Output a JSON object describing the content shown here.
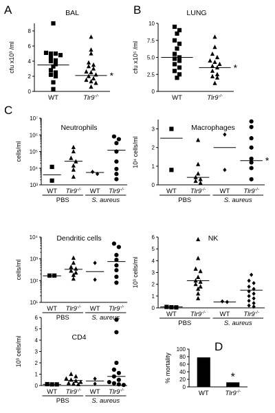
{
  "panel_labels": {
    "A": "A",
    "B": "B",
    "C": "C",
    "D": "D"
  },
  "chart_data": [
    {
      "id": "bal",
      "type": "scatter",
      "title": "BAL",
      "ylabel": "cfu x10³ /ml",
      "ylim": [
        0,
        9
      ],
      "yticks": [
        0,
        2,
        4,
        6,
        8
      ],
      "groups": [
        "WT",
        "Tlr9-/-"
      ],
      "group_labels": [],
      "series": [
        {
          "marker": "square",
          "values": [
            9,
            5.1,
            5,
            5,
            4.8,
            4.5,
            4.1,
            4,
            3.6,
            3.3,
            2.8,
            2.5,
            2.2,
            2,
            1.2,
            0.3
          ],
          "median": 3.5
        },
        {
          "marker": "triangle",
          "values": [
            7.2,
            5.5,
            5,
            3.8,
            3.5,
            3.3,
            3,
            2.6,
            2.5,
            2.2,
            2,
            1.7,
            1.5,
            1.3,
            1.1,
            0.6
          ],
          "median": 2.1
        }
      ],
      "annotations": [
        {
          "text": "*",
          "series": 1
        }
      ]
    },
    {
      "id": "lung",
      "type": "scatter",
      "title": "LUNG",
      "ylabel": "cfu x10⁵ /ml",
      "ylim": [
        0,
        10
      ],
      "yticks": [
        0,
        2.5,
        5,
        7.5,
        10
      ],
      "tick_labels": [
        "0",
        "2.5",
        "5.0",
        "7.5",
        "10"
      ],
      "groups": [
        "WT",
        "Tlr9-/-"
      ],
      "group_labels": [],
      "series": [
        {
          "marker": "square",
          "values": [
            9.5,
            9,
            8.5,
            7.5,
            7,
            6.3,
            5.5,
            5,
            4.8,
            4.5,
            4,
            3.5,
            3,
            2.5,
            2
          ],
          "median": 5
        },
        {
          "marker": "triangle",
          "values": [
            8,
            6.5,
            5.5,
            5,
            4.5,
            4.3,
            4,
            3.7,
            3.5,
            3,
            2.5,
            2.2,
            2,
            1.2
          ],
          "median": 3.5
        }
      ],
      "annotations": [
        {
          "text": "*",
          "series": 1
        }
      ]
    },
    {
      "id": "neutrophils",
      "type": "scatter",
      "title": "Neutrophils",
      "ylabel": "cells/ml",
      "yscale": "log",
      "ylim": [
        1000,
        10000000
      ],
      "yticks": [
        1000,
        10000,
        100000,
        1000000,
        10000000
      ],
      "tick_labels": [
        "10³",
        "10⁴",
        "10⁵",
        "10⁶",
        "10⁷"
      ],
      "groups": [
        "WT",
        "Tlr9-/-",
        "WT",
        "Tlr9-/-"
      ],
      "group_labels": [
        "PBS",
        "S. aureus"
      ],
      "series": [
        {
          "marker": "square",
          "values": [
            12000,
            1800
          ],
          "median": 4000
        },
        {
          "marker": "triangle",
          "values": [
            180000,
            100000,
            40000,
            25000,
            14000,
            8000,
            3000
          ],
          "median": 26000
        },
        {
          "marker": "diamond",
          "values": [
            6000,
            4500
          ],
          "median": 5500
        },
        {
          "marker": "circle",
          "values": [
            800000,
            550000,
            320000,
            100000,
            25000,
            9000,
            4500,
            2200
          ],
          "median": 120000
        }
      ],
      "annotations": []
    },
    {
      "id": "macrophages",
      "type": "scatter",
      "title": "Macrophages",
      "ylabel": "10⁴ cells/ml",
      "ylim": [
        0,
        3.5
      ],
      "yticks": [
        0,
        1,
        2,
        3
      ],
      "groups": [
        "WT",
        "Tlr9-/-",
        "WT",
        "Tlr9-/-"
      ],
      "group_labels": [
        "PBS",
        "S. aureus"
      ],
      "series": [
        {
          "marker": "square",
          "values": [
            3,
            0.8
          ],
          "median": 2.5
        },
        {
          "marker": "triangle",
          "values": [
            2.4,
            1.1,
            0.6,
            0.4,
            0.3,
            0.2,
            0.1
          ],
          "median": 0.4
        },
        {
          "marker": "diamond",
          "values": [
            2.7,
            0.8
          ],
          "median": 2
        },
        {
          "marker": "circle",
          "values": [
            3.4,
            3.1,
            2.5,
            2,
            1.4,
            1.2,
            0.9,
            0.3
          ],
          "median": 1.3
        }
      ],
      "annotations": [
        {
          "text": "*",
          "series": 3
        }
      ]
    },
    {
      "id": "dendritic",
      "type": "scatter",
      "title": "Dendritic cells",
      "ylabel": "cells/ml",
      "yscale": "log",
      "ylim": [
        10,
        10000
      ],
      "yticks": [
        10,
        100,
        1000,
        10000
      ],
      "tick_labels": [
        "10¹",
        "10²",
        "10³",
        "10⁴"
      ],
      "groups": [
        "WT",
        "Tlr9-/-",
        "WT",
        "Tlr9-/-"
      ],
      "group_labels": [
        "PBS",
        "S. aureus"
      ],
      "series": [
        {
          "marker": "square",
          "values": [
            170,
            170
          ],
          "median": 165
        },
        {
          "marker": "triangle",
          "values": [
            1100,
            650,
            420,
            350,
            280,
            230,
            180,
            120
          ],
          "median": 330
        },
        {
          "marker": "diamond",
          "values": [
            650,
            110
          ],
          "median": 260
        },
        {
          "marker": "circle",
          "values": [
            5000,
            3500,
            1500,
            900,
            500,
            300,
            150,
            80
          ],
          "median": 750
        }
      ],
      "annotations": []
    },
    {
      "id": "nk",
      "type": "scatter",
      "title": "NK",
      "ylabel": "10³ cells/ml",
      "ylim": [
        0,
        6
      ],
      "yticks": [
        0,
        1,
        2,
        3,
        4,
        5,
        6
      ],
      "groups": [
        "WT",
        "Tlr9-/-",
        "WT",
        "Tlr9-/-"
      ],
      "group_labels": [
        "PBS",
        "S. aureus"
      ],
      "series": [
        {
          "marker": "square",
          "values": [
            0.05,
            0.08,
            0.04
          ],
          "median": 0.08
        },
        {
          "marker": "triangle",
          "values": [
            5.8,
            4.2,
            3.3,
            3.1,
            2.6,
            2.3,
            2.2,
            2,
            1.8,
            1.6,
            1.2,
            0.8
          ],
          "median": 2.3
        },
        {
          "marker": "diamond",
          "values": [
            0.5,
            0.55
          ],
          "median": 0.5
        },
        {
          "marker": "diamond",
          "values": [
            2.8,
            2.3,
            2.1,
            1.8,
            1.6,
            1.4,
            1.2,
            1,
            0.8,
            0.6,
            0.4,
            0.2,
            0.1
          ],
          "median": 1.5
        }
      ],
      "annotations": []
    },
    {
      "id": "cd4",
      "type": "scatter",
      "title": "CD4",
      "ylabel": "10³ cells/ml",
      "ylim": [
        0,
        6
      ],
      "yticks": [
        0,
        1,
        2,
        3,
        4,
        5,
        6
      ],
      "groups": [
        "WT",
        "Tlr9-/-",
        "WT",
        "Tlr9-/-"
      ],
      "group_labels": [
        "PBS",
        "S. aureus"
      ],
      "series": [
        {
          "marker": "square",
          "values": [
            0.1,
            0.1,
            0.12
          ],
          "median": 0.1
        },
        {
          "marker": "triangle",
          "values": [
            1,
            0.8,
            0.6,
            0.5,
            0.4,
            0.3,
            0.2,
            0.15,
            0.1
          ],
          "median": 0.45
        },
        {
          "marker": "diamond",
          "values": [
            0.6,
            0.15
          ],
          "median": 0.4
        },
        {
          "marker": "circle",
          "values": [
            5.8,
            4.7,
            2,
            1.4,
            1.1,
            0.8,
            0.5,
            0.3,
            0.2,
            0.1,
            0.05
          ],
          "median": 0.8
        }
      ],
      "annotations": []
    },
    {
      "id": "mortality",
      "type": "bar",
      "title": "",
      "ylabel": "% mortality",
      "ylim": [
        0,
        100
      ],
      "yticks": [
        0,
        20,
        40,
        60,
        80,
        100
      ],
      "categories": [
        "WT",
        "Tlr9-/-"
      ],
      "values": [
        78,
        12
      ],
      "annotations": [
        {
          "text": "*",
          "category": 1
        }
      ]
    }
  ]
}
